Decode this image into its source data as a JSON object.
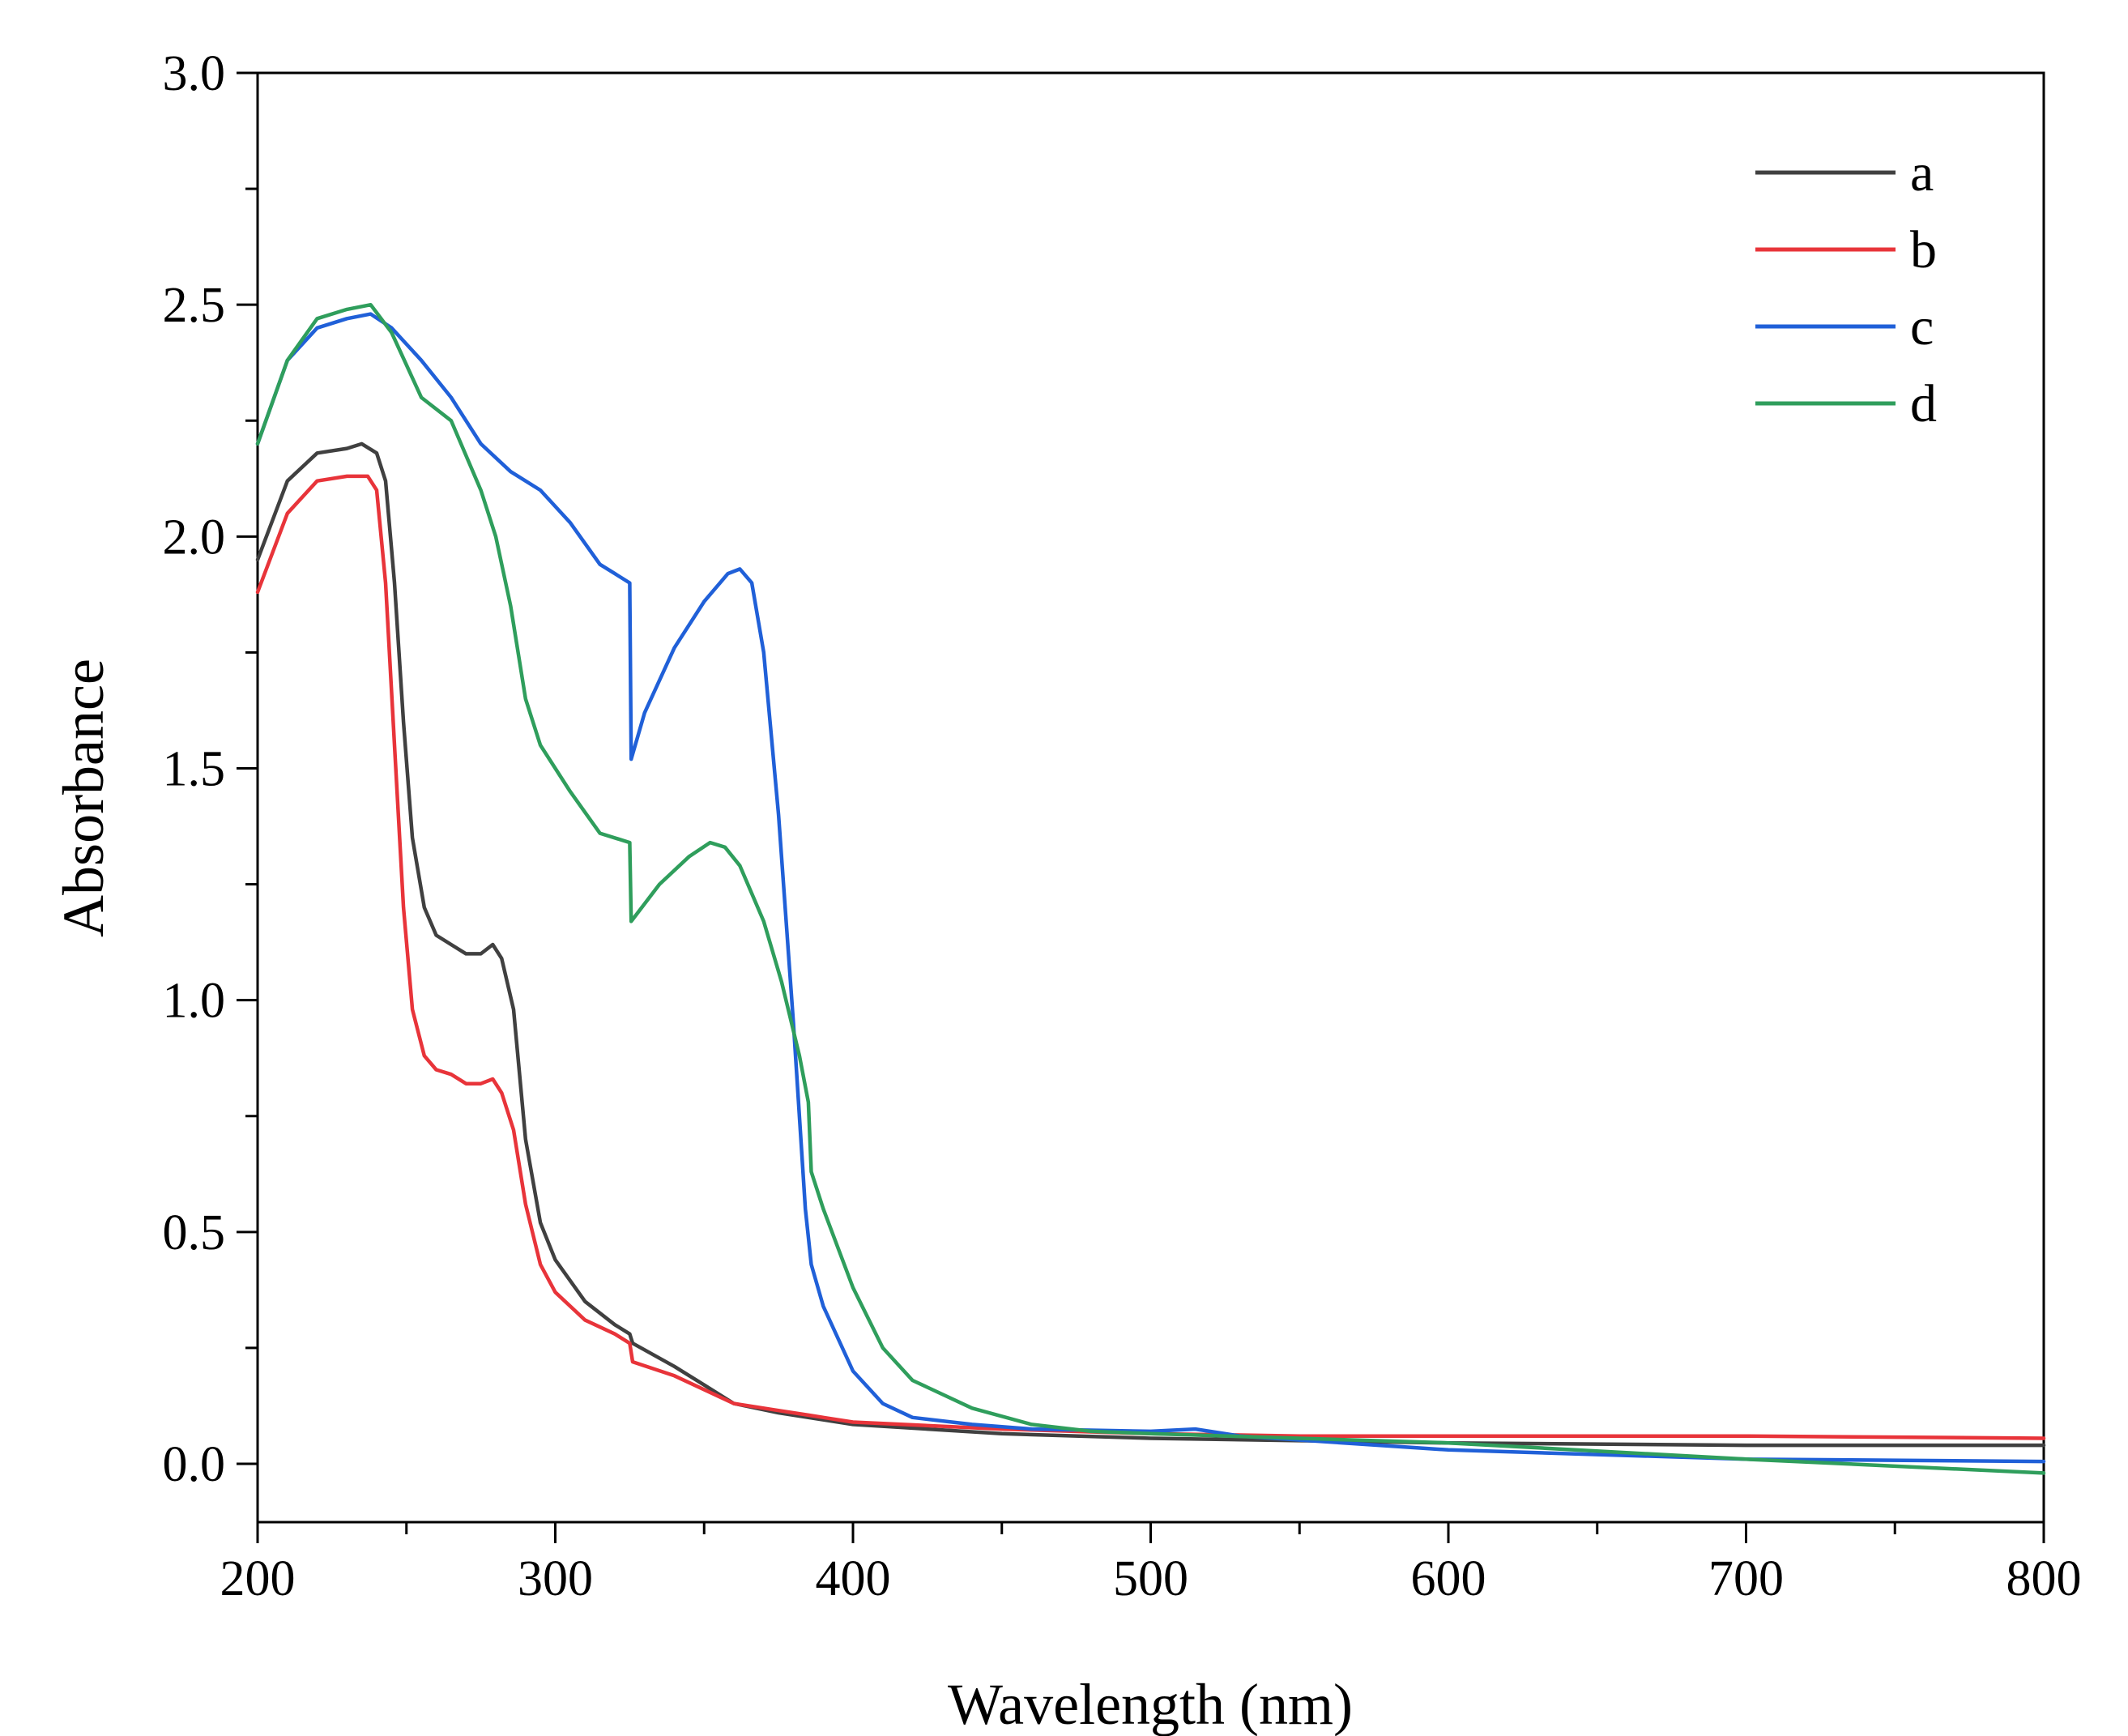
{
  "chart_data": {
    "type": "line",
    "title": "",
    "xlabel": "Wavelength (nm)",
    "ylabel": "Absorbance",
    "xlim": [
      200,
      800
    ],
    "ylim": [
      -0.1,
      3.0
    ],
    "xticks": [
      200,
      300,
      400,
      500,
      600,
      700,
      800
    ],
    "xtick_labels": [
      "200",
      "300",
      "400",
      "500",
      "600",
      "700",
      "800"
    ],
    "yticks": [
      0.0,
      0.5,
      1.0,
      1.5,
      2.0,
      2.5,
      3.0
    ],
    "ytick_labels": [
      "0.0",
      "0.5",
      "1.0",
      "1.5",
      "2.0",
      "2.5",
      "3.0"
    ],
    "grid": false,
    "legend_position": "top-right",
    "series": [
      {
        "name": "a",
        "color": "#404040",
        "points": [
          [
            200,
            1.95
          ],
          [
            210,
            2.12
          ],
          [
            220,
            2.18
          ],
          [
            230,
            2.19
          ],
          [
            235,
            2.2
          ],
          [
            240,
            2.18
          ],
          [
            243,
            2.12
          ],
          [
            246,
            1.9
          ],
          [
            249,
            1.6
          ],
          [
            252,
            1.35
          ],
          [
            256,
            1.2
          ],
          [
            260,
            1.14
          ],
          [
            265,
            1.12
          ],
          [
            270,
            1.1
          ],
          [
            275,
            1.1
          ],
          [
            279,
            1.12
          ],
          [
            282,
            1.09
          ],
          [
            286,
            0.98
          ],
          [
            290,
            0.7
          ],
          [
            295,
            0.52
          ],
          [
            300,
            0.44
          ],
          [
            310,
            0.35
          ],
          [
            320,
            0.3
          ],
          [
            325,
            0.28
          ],
          [
            326,
            0.26
          ],
          [
            340,
            0.21
          ],
          [
            350,
            0.17
          ],
          [
            360,
            0.13
          ],
          [
            375,
            0.11
          ],
          [
            390,
            0.095
          ],
          [
            400,
            0.085
          ],
          [
            450,
            0.065
          ],
          [
            500,
            0.055
          ],
          [
            550,
            0.05
          ],
          [
            600,
            0.045
          ],
          [
            700,
            0.04
          ],
          [
            800,
            0.04
          ]
        ]
      },
      {
        "name": "b",
        "color": "#e8343a",
        "points": [
          [
            200,
            1.88
          ],
          [
            210,
            2.05
          ],
          [
            220,
            2.12
          ],
          [
            230,
            2.13
          ],
          [
            237,
            2.13
          ],
          [
            240,
            2.1
          ],
          [
            243,
            1.9
          ],
          [
            246,
            1.55
          ],
          [
            249,
            1.2
          ],
          [
            252,
            0.98
          ],
          [
            256,
            0.88
          ],
          [
            260,
            0.85
          ],
          [
            265,
            0.84
          ],
          [
            270,
            0.82
          ],
          [
            275,
            0.82
          ],
          [
            279,
            0.83
          ],
          [
            282,
            0.8
          ],
          [
            286,
            0.72
          ],
          [
            290,
            0.56
          ],
          [
            295,
            0.43
          ],
          [
            300,
            0.37
          ],
          [
            310,
            0.31
          ],
          [
            320,
            0.28
          ],
          [
            325,
            0.26
          ],
          [
            326,
            0.22
          ],
          [
            340,
            0.19
          ],
          [
            350,
            0.16
          ],
          [
            360,
            0.13
          ],
          [
            375,
            0.115
          ],
          [
            385,
            0.105
          ],
          [
            400,
            0.09
          ],
          [
            450,
            0.075
          ],
          [
            500,
            0.065
          ],
          [
            550,
            0.06
          ],
          [
            600,
            0.06
          ],
          [
            700,
            0.06
          ],
          [
            800,
            0.055
          ]
        ]
      },
      {
        "name": "c",
        "color": "#2060d8",
        "points": [
          [
            200,
            2.2
          ],
          [
            210,
            2.38
          ],
          [
            220,
            2.45
          ],
          [
            230,
            2.47
          ],
          [
            238,
            2.48
          ],
          [
            245,
            2.45
          ],
          [
            255,
            2.38
          ],
          [
            265,
            2.3
          ],
          [
            275,
            2.2
          ],
          [
            285,
            2.14
          ],
          [
            295,
            2.1
          ],
          [
            305,
            2.03
          ],
          [
            315,
            1.94
          ],
          [
            320,
            1.92
          ],
          [
            325,
            1.9
          ],
          [
            325.5,
            1.52
          ],
          [
            330,
            1.62
          ],
          [
            340,
            1.76
          ],
          [
            350,
            1.86
          ],
          [
            358,
            1.92
          ],
          [
            362,
            1.93
          ],
          [
            366,
            1.9
          ],
          [
            370,
            1.75
          ],
          [
            375,
            1.4
          ],
          [
            380,
            0.95
          ],
          [
            384,
            0.55
          ],
          [
            386,
            0.43
          ],
          [
            390,
            0.34
          ],
          [
            400,
            0.2
          ],
          [
            410,
            0.13
          ],
          [
            420,
            0.1
          ],
          [
            440,
            0.085
          ],
          [
            460,
            0.075
          ],
          [
            500,
            0.07
          ],
          [
            515,
            0.075
          ],
          [
            530,
            0.06
          ],
          [
            600,
            0.03
          ],
          [
            700,
            0.01
          ],
          [
            800,
            0.005
          ]
        ]
      },
      {
        "name": "d",
        "color": "#2f9e5c",
        "points": [
          [
            200,
            2.2
          ],
          [
            210,
            2.38
          ],
          [
            220,
            2.47
          ],
          [
            230,
            2.49
          ],
          [
            238,
            2.5
          ],
          [
            245,
            2.44
          ],
          [
            250,
            2.37
          ],
          [
            255,
            2.3
          ],
          [
            265,
            2.25
          ],
          [
            275,
            2.1
          ],
          [
            280,
            2.0
          ],
          [
            285,
            1.85
          ],
          [
            290,
            1.65
          ],
          [
            295,
            1.55
          ],
          [
            305,
            1.45
          ],
          [
            315,
            1.36
          ],
          [
            325,
            1.34
          ],
          [
            325.5,
            1.17
          ],
          [
            335,
            1.25
          ],
          [
            345,
            1.31
          ],
          [
            352,
            1.34
          ],
          [
            357,
            1.33
          ],
          [
            362,
            1.29
          ],
          [
            370,
            1.17
          ],
          [
            376,
            1.04
          ],
          [
            382,
            0.88
          ],
          [
            385,
            0.78
          ],
          [
            386,
            0.63
          ],
          [
            390,
            0.55
          ],
          [
            400,
            0.38
          ],
          [
            410,
            0.25
          ],
          [
            420,
            0.18
          ],
          [
            440,
            0.12
          ],
          [
            460,
            0.085
          ],
          [
            480,
            0.07
          ],
          [
            500,
            0.065
          ],
          [
            600,
            0.045
          ],
          [
            700,
            0.01
          ],
          [
            800,
            -0.02
          ]
        ]
      }
    ]
  }
}
